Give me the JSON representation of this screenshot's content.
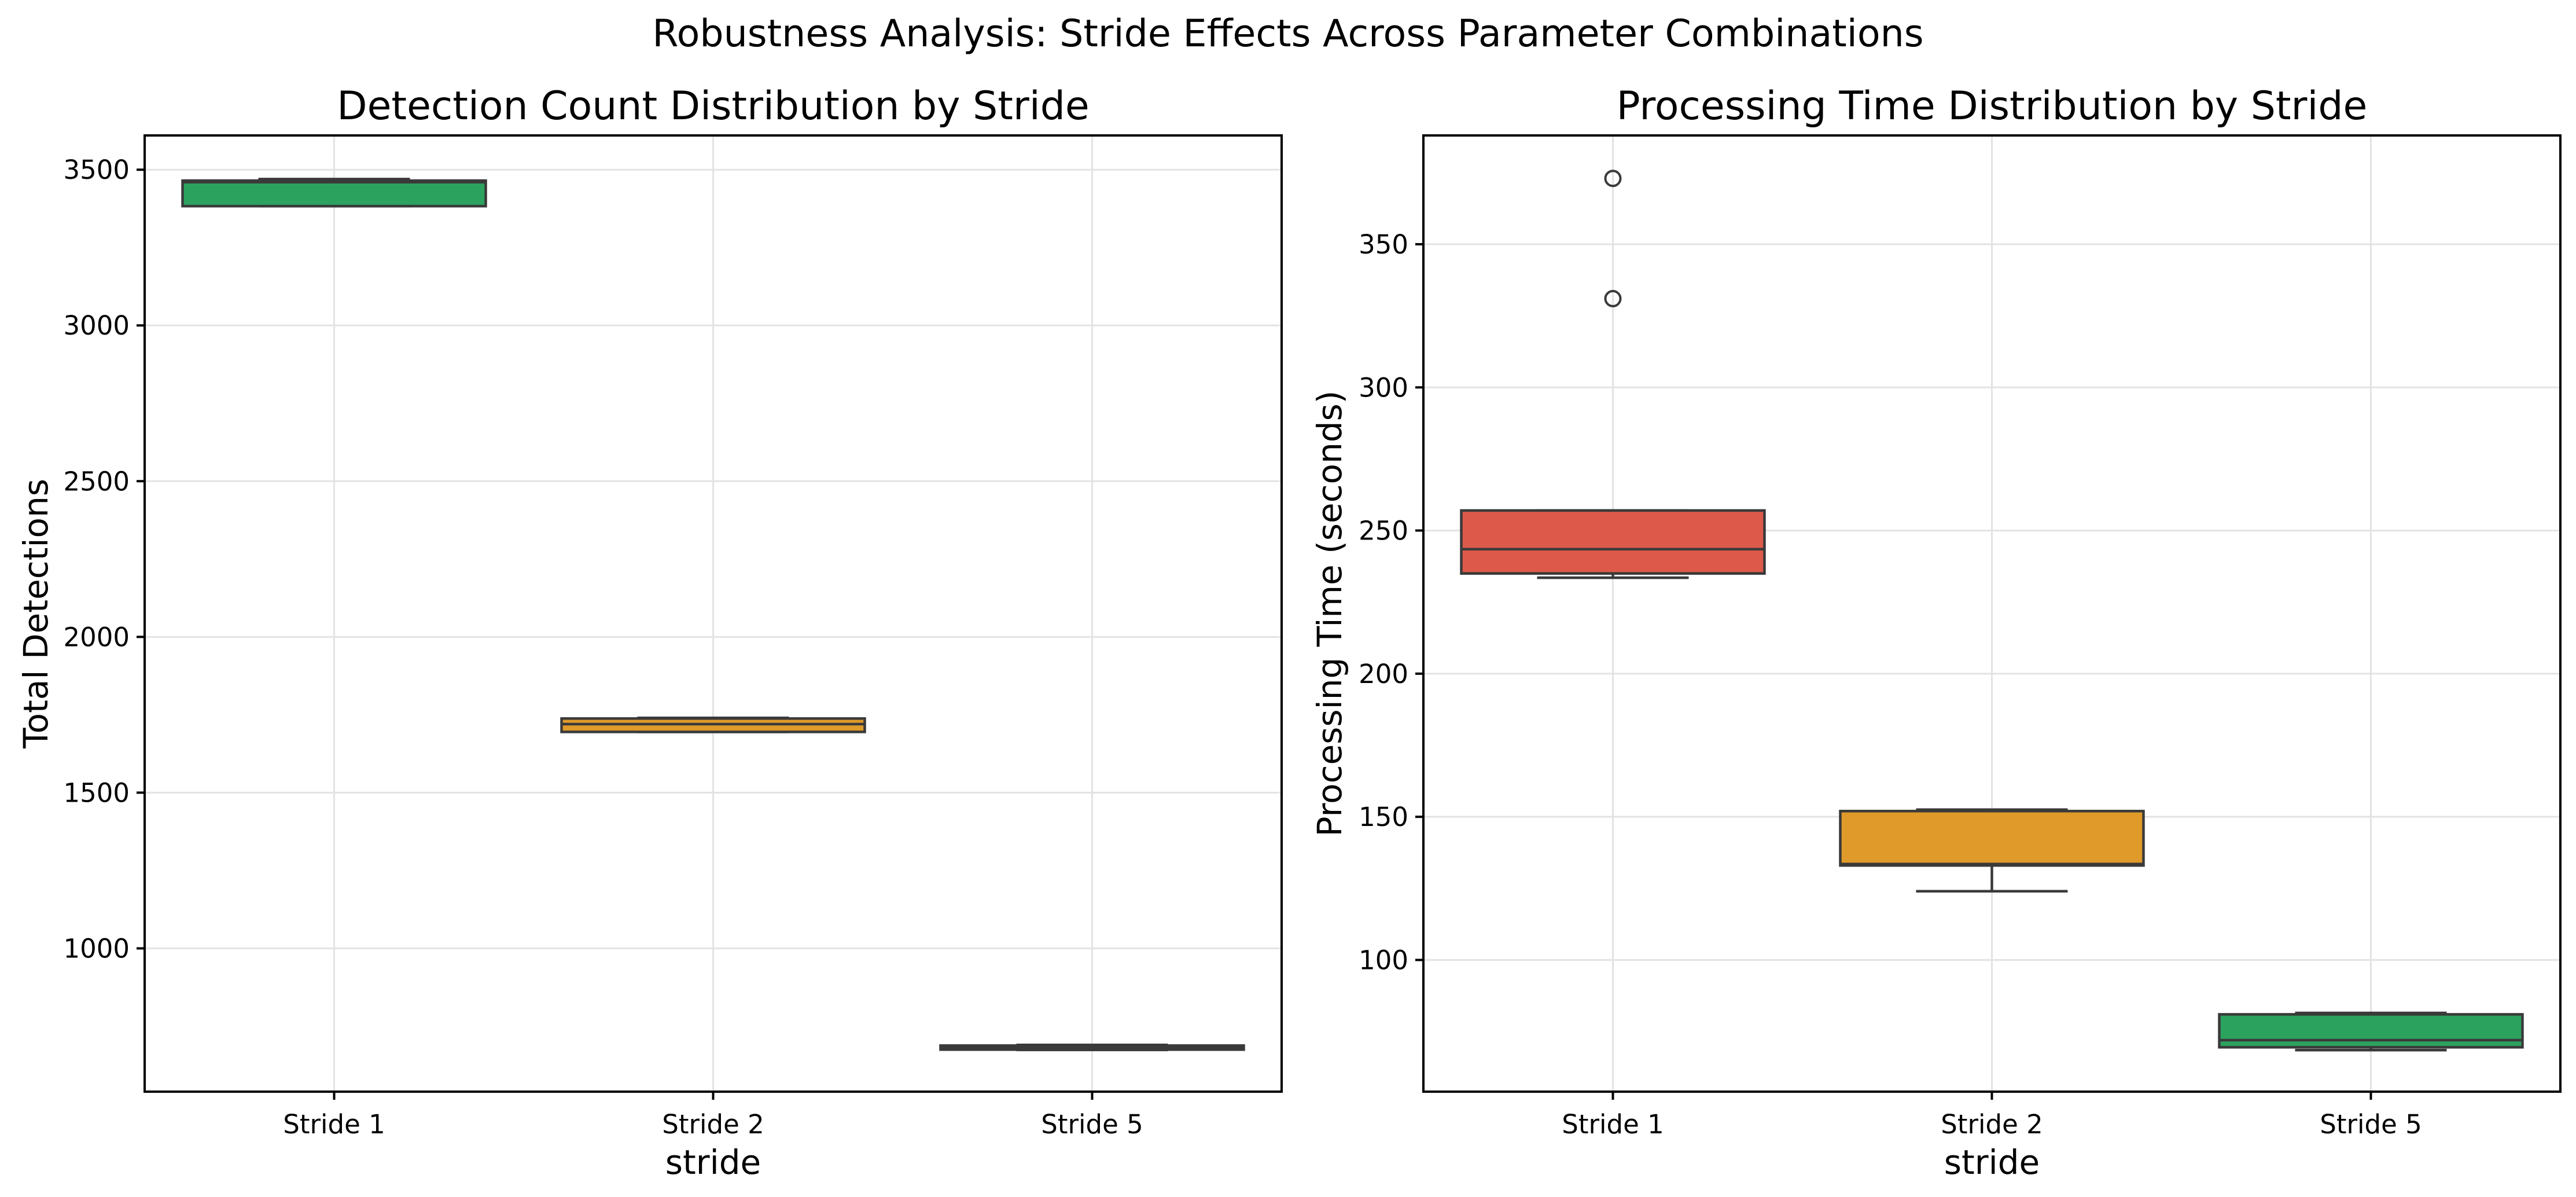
{
  "figure": {
    "title": "Robustness Analysis: Stride Effects Across Parameter Combinations"
  },
  "chart_data": [
    {
      "type": "box",
      "title": "Detection Count Distribution by Stride",
      "xlabel": "stride",
      "ylabel": "Total Detections",
      "categories": [
        "Stride 1",
        "Stride 2",
        "Stride 5"
      ],
      "ylim": [
        540,
        3610
      ],
      "yticks": [
        1000,
        1500,
        2000,
        2500,
        3000,
        3500
      ],
      "grid": true,
      "boxes": [
        {
          "category": "Stride 1",
          "color": "#2ca25f",
          "q1": 3383,
          "median": 3460,
          "q3": 3465,
          "whisker_low": 3383,
          "whisker_high": 3470,
          "outliers": []
        },
        {
          "category": "Stride 2",
          "color": "#e09a2a",
          "q1": 1695,
          "median": 1720,
          "q3": 1738,
          "whisker_low": 1695,
          "whisker_high": 1740,
          "outliers": []
        },
        {
          "category": "Stride 5",
          "color": "#dd5a4a",
          "q1": 675,
          "median": 682,
          "q3": 688,
          "whisker_low": 674,
          "whisker_high": 690,
          "outliers": []
        }
      ]
    },
    {
      "type": "box",
      "title": "Processing Time Distribution by Stride",
      "xlabel": "stride",
      "ylabel": "Processing Time (seconds)",
      "categories": [
        "Stride 1",
        "Stride 2",
        "Stride 5"
      ],
      "ylim": [
        54,
        388
      ],
      "yticks": [
        100,
        150,
        200,
        250,
        300,
        350
      ],
      "grid": true,
      "boxes": [
        {
          "category": "Stride 1",
          "color": "#dd5a4a",
          "q1": 235,
          "median": 243.5,
          "q3": 257,
          "whisker_low": 233.5,
          "whisker_high": 257,
          "outliers": [
            331,
            373
          ]
        },
        {
          "category": "Stride 2",
          "color": "#e09a2a",
          "q1": 133,
          "median": 133.5,
          "q3": 152,
          "whisker_low": 124,
          "whisker_high": 152.5,
          "outliers": []
        },
        {
          "category": "Stride 5",
          "color": "#2ca25f",
          "q1": 69.5,
          "median": 72,
          "q3": 81,
          "whisker_low": 68.5,
          "whisker_high": 81.5,
          "outliers": []
        }
      ]
    }
  ]
}
